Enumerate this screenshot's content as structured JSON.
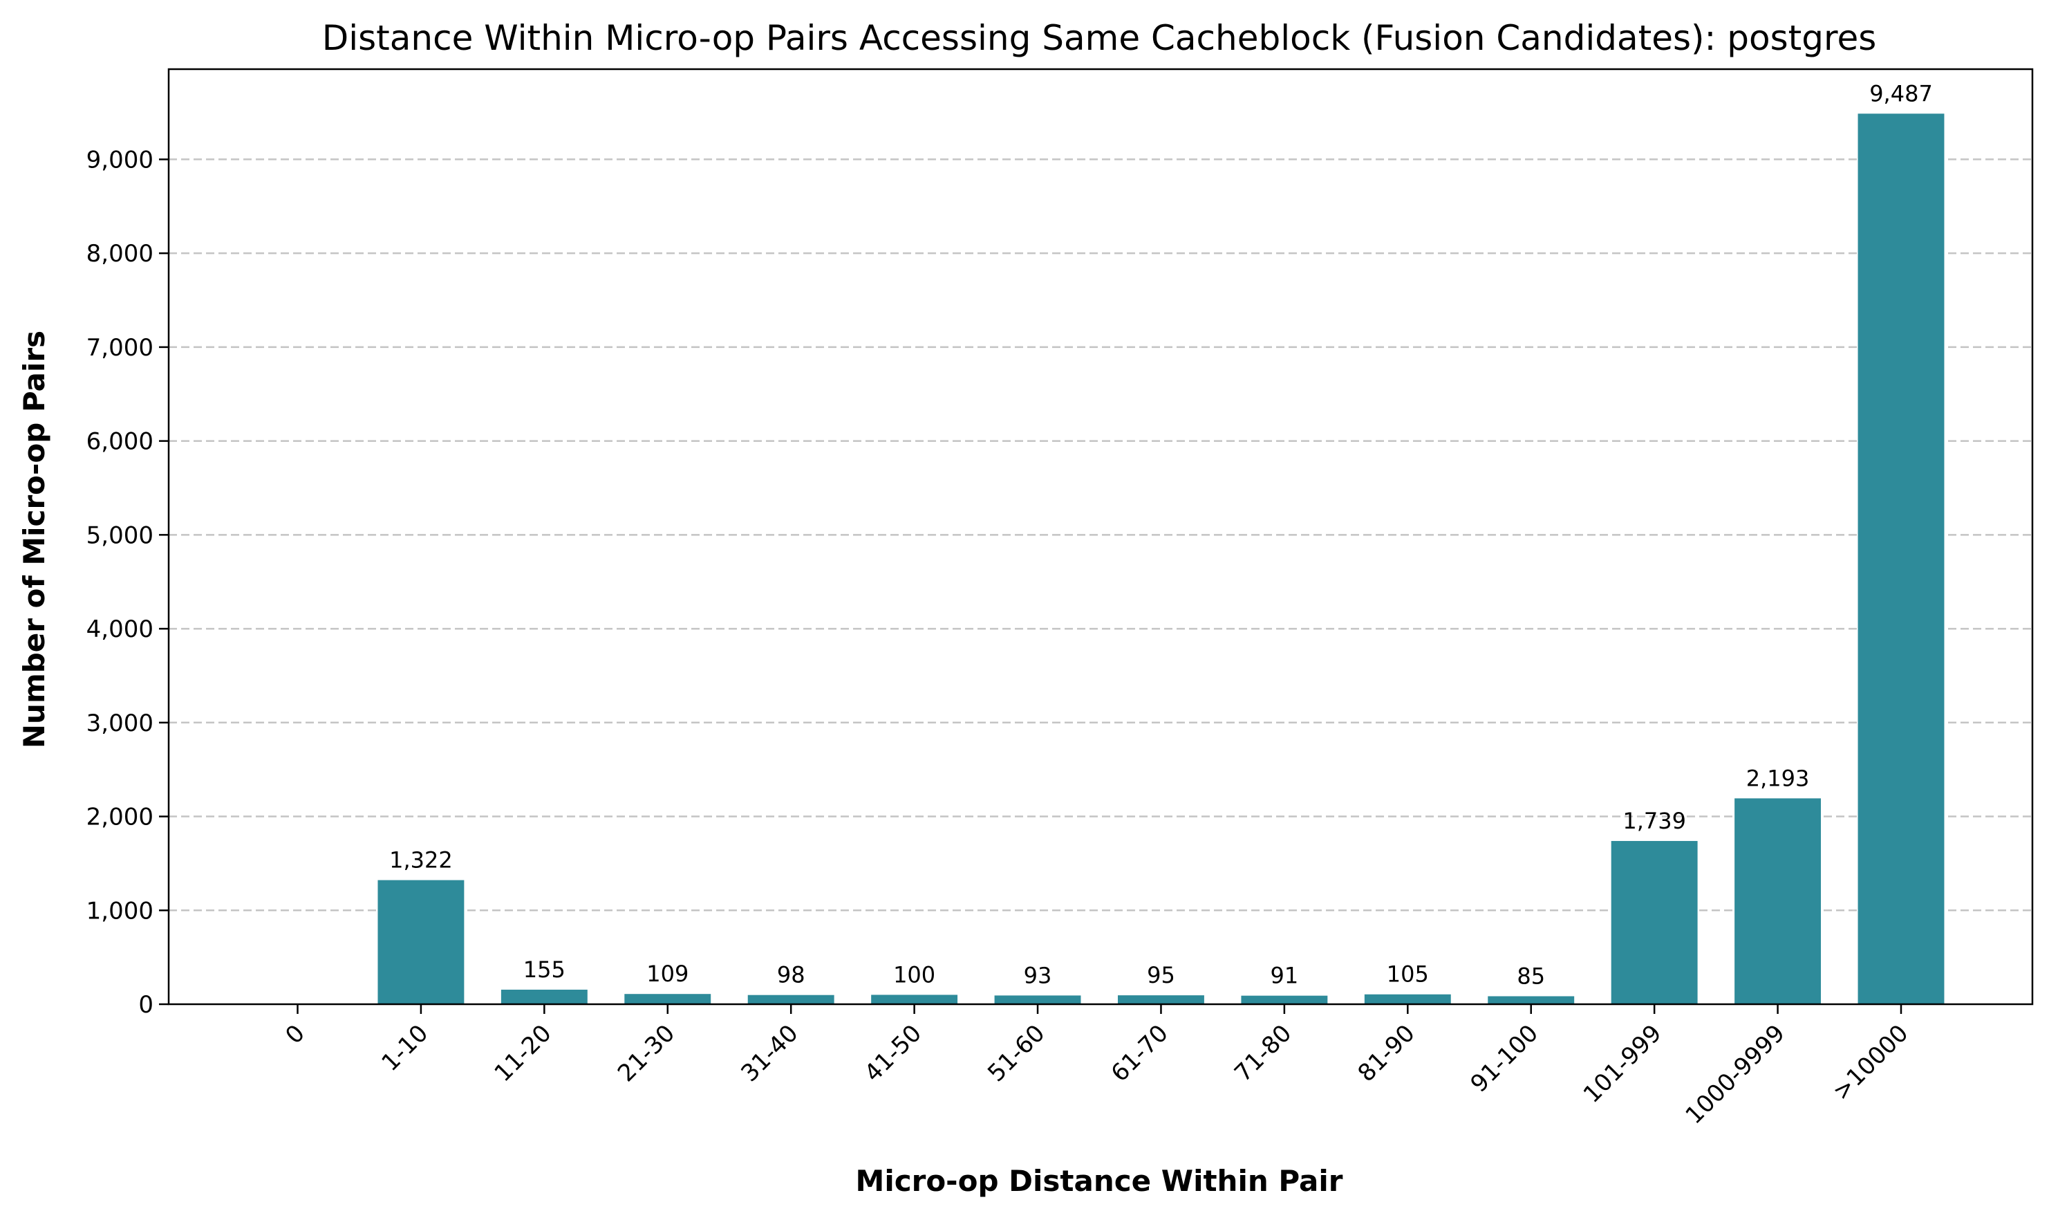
{
  "chart_data": {
    "type": "bar",
    "title": "Distance Within Micro-op Pairs Accessing Same Cacheblock (Fusion Candidates): postgres",
    "xlabel": "Micro-op Distance Within Pair",
    "ylabel": "Number of Micro-op Pairs",
    "categories": [
      "0",
      "1-10",
      "11-20",
      "21-30",
      "31-40",
      "41-50",
      "51-60",
      "61-70",
      "71-80",
      "81-90",
      "91-100",
      "101-999",
      "1000-9999",
      ">10000"
    ],
    "values": [
      0,
      1322,
      155,
      109,
      98,
      100,
      93,
      95,
      91,
      105,
      85,
      1739,
      2193,
      9487
    ],
    "value_labels": [
      "",
      "1,322",
      "155",
      "109",
      "98",
      "100",
      "93",
      "95",
      "91",
      "105",
      "85",
      "1,739",
      "2,193",
      "9,487"
    ],
    "yticks": [
      0,
      1000,
      2000,
      3000,
      4000,
      5000,
      6000,
      7000,
      8000,
      9000
    ],
    "ytick_labels": [
      "0",
      "1,000",
      "2,000",
      "3,000",
      "4,000",
      "5,000",
      "6,000",
      "7,000",
      "8,000",
      "9,000"
    ],
    "ylim": [
      0,
      9961
    ],
    "grid": "y-dashed",
    "bar_color": "#2e8b9a",
    "grid_color": "#c4c4c4"
  }
}
